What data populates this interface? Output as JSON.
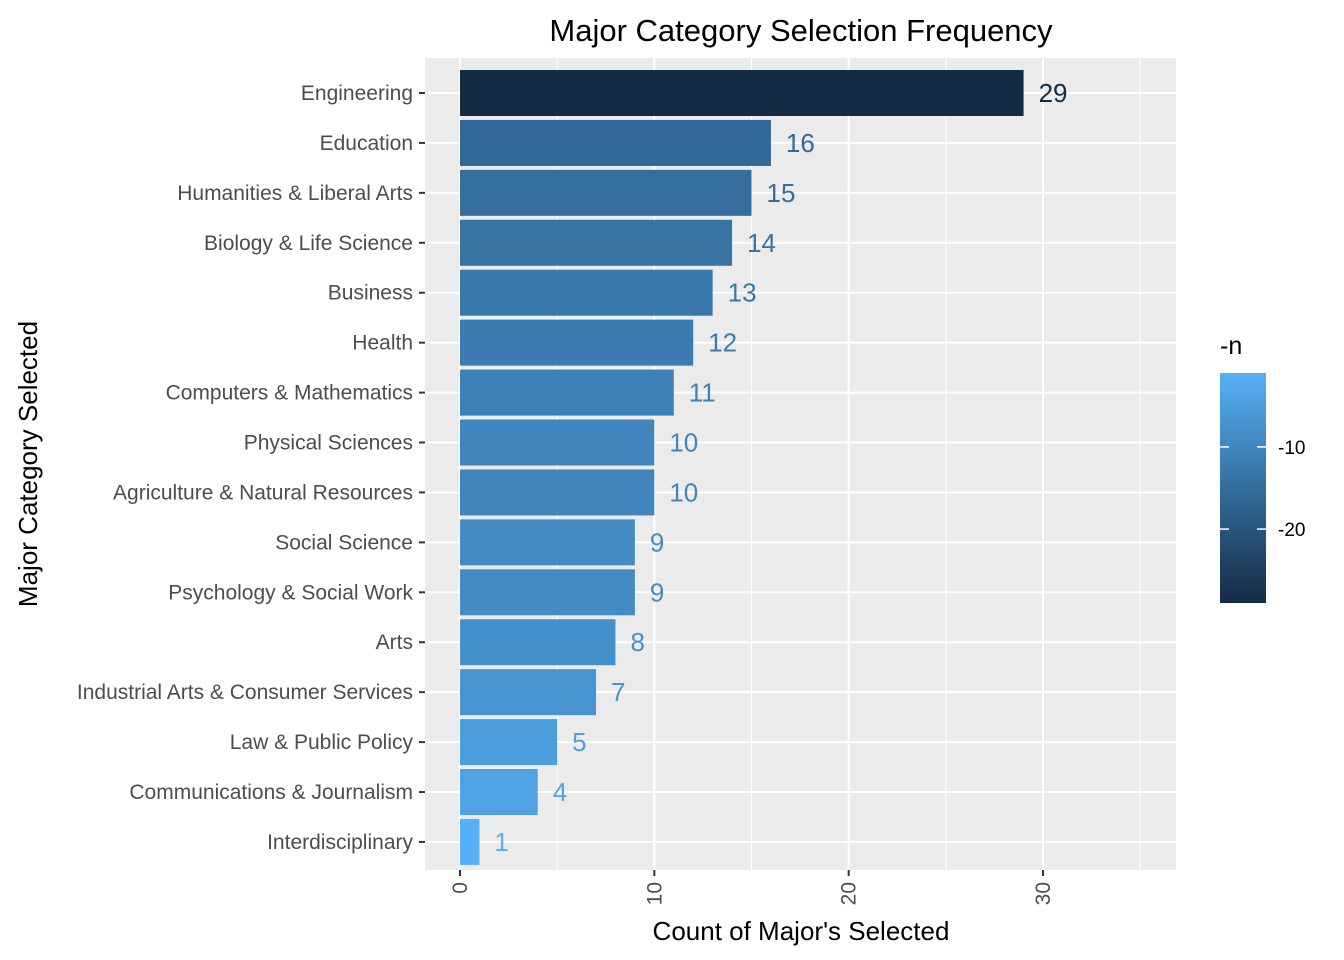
{
  "chart_data": {
    "type": "bar",
    "orientation": "horizontal",
    "title": "Major Category Selection Frequency",
    "xlabel": "Count of Major's Selected",
    "ylabel": "Major Category Selected",
    "xlim": [
      0,
      35
    ],
    "x_ticks": [
      0,
      10,
      20,
      30
    ],
    "grid": true,
    "categories": [
      "Engineering",
      "Education",
      "Humanities & Liberal Arts",
      "Biology & Life Science",
      "Business",
      "Health",
      "Computers & Mathematics",
      "Physical Sciences",
      "Agriculture & Natural Resources",
      "Social Science",
      "Psychology & Social Work",
      "Arts",
      "Industrial Arts & Consumer Services",
      "Law & Public Policy",
      "Communications & Journalism",
      "Interdisciplinary"
    ],
    "values": [
      29,
      16,
      15,
      14,
      13,
      12,
      11,
      10,
      10,
      9,
      9,
      8,
      7,
      5,
      4,
      1
    ],
    "fill_variable": "-n",
    "legend": {
      "title": "-n",
      "position": "right",
      "ticks": [
        -10,
        -20
      ],
      "range": [
        -29,
        -1
      ],
      "color_low": "#132B43",
      "color_high": "#56B1F7"
    }
  }
}
